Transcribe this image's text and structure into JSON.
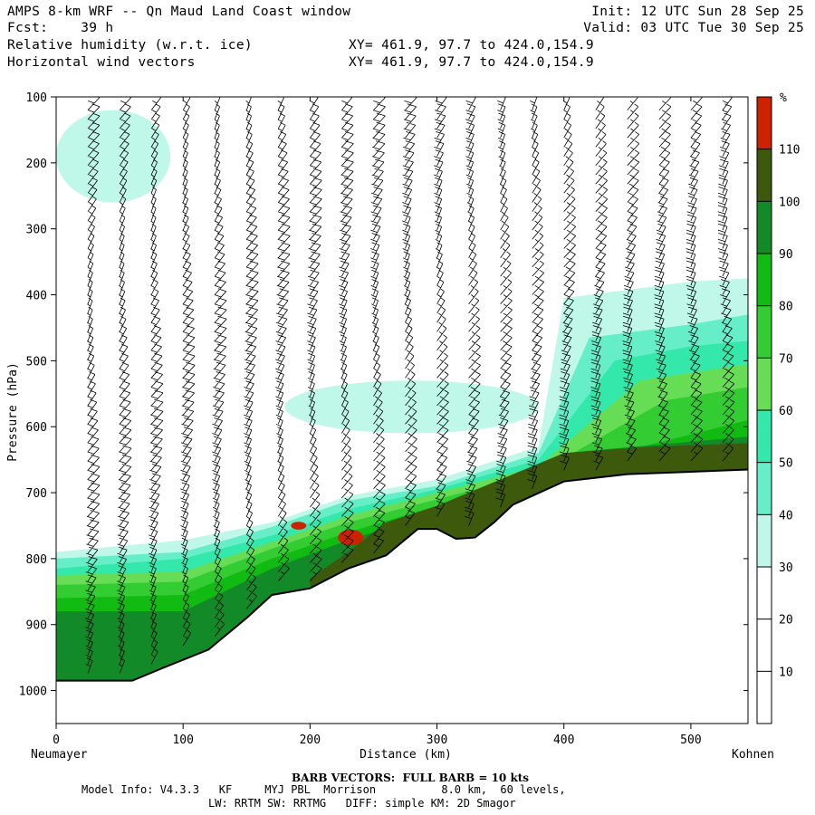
{
  "header": {
    "title": "AMPS 8-km WRF -- Qn Maud Land Coast window",
    "forecast": "Fcst:    39 h",
    "field1": "Relative humidity (w.r.t. ice)",
    "field2": "Horizontal wind vectors",
    "init": "Init: 12 UTC Sun 28 Sep 25",
    "valid": "Valid: 03 UTC Tue 30 Sep 25",
    "xy1": "XY= 461.9, 97.7 to 424.0,154.9",
    "xy2": "XY= 461.9, 97.7 to 424.0,154.9"
  },
  "footer": {
    "barb_note": "BARB VECTORS:  FULL BARB = 10 kts",
    "model_info_1": "Model Info: V4.3.3   KF     MYJ PBL  Morrison          8.0 km,  60 levels,",
    "model_info_2": "LW: RRTM SW: RRTMG   DIFF: simple KM: 2D Smagor"
  },
  "chart_data": {
    "type": "heatmap",
    "title": "Relative humidity (w.r.t. ice) and horizontal wind vectors — cross section",
    "xlabel": "Distance (km)",
    "ylabel": "Pressure (hPa)",
    "xlim": [
      0,
      545
    ],
    "ylim": [
      1050,
      100
    ],
    "x_ticks": [
      0,
      100,
      200,
      300,
      400,
      500
    ],
    "y_ticks": [
      100,
      200,
      300,
      400,
      500,
      600,
      700,
      800,
      900,
      1000
    ],
    "x_endpoint_labels": {
      "left": "Neumayer",
      "right": "Kohnen"
    },
    "colorbar": {
      "unit": "%",
      "ticks": [
        10,
        20,
        30,
        40,
        50,
        60,
        70,
        80,
        90,
        100,
        110
      ],
      "bins": [
        {
          "min": 0,
          "max": 30,
          "color": "#ffffff"
        },
        {
          "min": 30,
          "max": 40,
          "color": "#bff7e8"
        },
        {
          "min": 40,
          "max": 50,
          "color": "#66eec8"
        },
        {
          "min": 50,
          "max": 60,
          "color": "#33e8aa"
        },
        {
          "min": 60,
          "max": 70,
          "color": "#66dd55"
        },
        {
          "min": 70,
          "max": 80,
          "color": "#33cc33"
        },
        {
          "min": 80,
          "max": 90,
          "color": "#11bb11"
        },
        {
          "min": 90,
          "max": 100,
          "color": "#128a28"
        },
        {
          "min": 100,
          "max": 110,
          "color": "#3d5a0c"
        },
        {
          "min": 110,
          "max": 120,
          "color": "#cc2200"
        }
      ]
    },
    "terrain_surface": [
      {
        "x": 0,
        "p": 985
      },
      {
        "x": 60,
        "p": 985
      },
      {
        "x": 85,
        "p": 965
      },
      {
        "x": 120,
        "p": 938
      },
      {
        "x": 150,
        "p": 890
      },
      {
        "x": 170,
        "p": 855
      },
      {
        "x": 200,
        "p": 845
      },
      {
        "x": 230,
        "p": 815
      },
      {
        "x": 260,
        "p": 795
      },
      {
        "x": 285,
        "p": 755
      },
      {
        "x": 300,
        "p": 755
      },
      {
        "x": 315,
        "p": 770
      },
      {
        "x": 330,
        "p": 768
      },
      {
        "x": 345,
        "p": 745
      },
      {
        "x": 360,
        "p": 718
      },
      {
        "x": 400,
        "p": 683
      },
      {
        "x": 450,
        "p": 672
      },
      {
        "x": 545,
        "p": 665
      }
    ],
    "rh_layers": [
      {
        "rh_min": 30,
        "top": [
          {
            "x": 0,
            "p": 790
          },
          {
            "x": 100,
            "p": 772
          },
          {
            "x": 170,
            "p": 745
          },
          {
            "x": 230,
            "p": 705
          },
          {
            "x": 300,
            "p": 680
          },
          {
            "x": 380,
            "p": 630
          },
          {
            "x": 400,
            "p": 405
          },
          {
            "x": 500,
            "p": 380
          },
          {
            "x": 545,
            "p": 375
          }
        ]
      },
      {
        "rh_min": 40,
        "top": [
          {
            "x": 0,
            "p": 800
          },
          {
            "x": 100,
            "p": 790
          },
          {
            "x": 170,
            "p": 752
          },
          {
            "x": 230,
            "p": 712
          },
          {
            "x": 300,
            "p": 690
          },
          {
            "x": 380,
            "p": 640
          },
          {
            "x": 420,
            "p": 465
          },
          {
            "x": 500,
            "p": 445
          },
          {
            "x": 545,
            "p": 430
          }
        ]
      },
      {
        "rh_min": 50,
        "top": [
          {
            "x": 0,
            "p": 815
          },
          {
            "x": 100,
            "p": 800
          },
          {
            "x": 170,
            "p": 765
          },
          {
            "x": 230,
            "p": 725
          },
          {
            "x": 300,
            "p": 695
          },
          {
            "x": 380,
            "p": 650
          },
          {
            "x": 440,
            "p": 500
          },
          {
            "x": 500,
            "p": 478
          },
          {
            "x": 545,
            "p": 470
          }
        ]
      },
      {
        "rh_min": 60,
        "top": [
          {
            "x": 0,
            "p": 825
          },
          {
            "x": 100,
            "p": 820
          },
          {
            "x": 170,
            "p": 775
          },
          {
            "x": 230,
            "p": 735
          },
          {
            "x": 300,
            "p": 700
          },
          {
            "x": 380,
            "p": 660
          },
          {
            "x": 460,
            "p": 530
          },
          {
            "x": 545,
            "p": 505
          }
        ]
      },
      {
        "rh_min": 70,
        "top": [
          {
            "x": 0,
            "p": 840
          },
          {
            "x": 100,
            "p": 835
          },
          {
            "x": 170,
            "p": 785
          },
          {
            "x": 230,
            "p": 745
          },
          {
            "x": 300,
            "p": 710
          },
          {
            "x": 380,
            "p": 670
          },
          {
            "x": 480,
            "p": 560
          },
          {
            "x": 545,
            "p": 540
          }
        ]
      },
      {
        "rh_min": 80,
        "top": [
          {
            "x": 0,
            "p": 860
          },
          {
            "x": 100,
            "p": 855
          },
          {
            "x": 170,
            "p": 800
          },
          {
            "x": 230,
            "p": 760
          },
          {
            "x": 300,
            "p": 720
          },
          {
            "x": 400,
            "p": 660
          },
          {
            "x": 545,
            "p": 590
          }
        ]
      },
      {
        "rh_min": 90,
        "top": [
          {
            "x": 0,
            "p": 880
          },
          {
            "x": 100,
            "p": 880
          },
          {
            "x": 170,
            "p": 815
          },
          {
            "x": 230,
            "p": 772
          },
          {
            "x": 300,
            "p": 730
          },
          {
            "x": 400,
            "p": 640
          },
          {
            "x": 545,
            "p": 615
          }
        ]
      },
      {
        "rh_min": 100,
        "top": [
          {
            "x": 200,
            "p": 830
          },
          {
            "x": 230,
            "p": 790
          },
          {
            "x": 260,
            "p": 745
          },
          {
            "x": 300,
            "p": 720
          },
          {
            "x": 350,
            "p": 680
          },
          {
            "x": 400,
            "p": 640
          },
          {
            "x": 470,
            "p": 630
          },
          {
            "x": 545,
            "p": 625
          }
        ]
      }
    ],
    "rh_patches": [
      {
        "rh_min": 30,
        "center": {
          "x": 45,
          "p": 190
        },
        "radius_km": 45,
        "radius_hpa": 70
      },
      {
        "rh_min": 30,
        "center": {
          "x": 280,
          "p": 570
        },
        "radius_km": 100,
        "radius_hpa": 40
      },
      {
        "rh_min": 110,
        "center": {
          "x": 232,
          "p": 768
        },
        "radius_km": 10,
        "radius_hpa": 12
      },
      {
        "rh_min": 110,
        "center": {
          "x": 191,
          "p": 750
        },
        "radius_km": 6,
        "radius_hpa": 6
      }
    ],
    "wind_barbs": {
      "columns_x_km": [
        25,
        50,
        75,
        100,
        125,
        150,
        175,
        200,
        225,
        250,
        275,
        300,
        325,
        350,
        375,
        400,
        425,
        450,
        475,
        500,
        525
      ],
      "full_barb_kts": 10
    }
  }
}
